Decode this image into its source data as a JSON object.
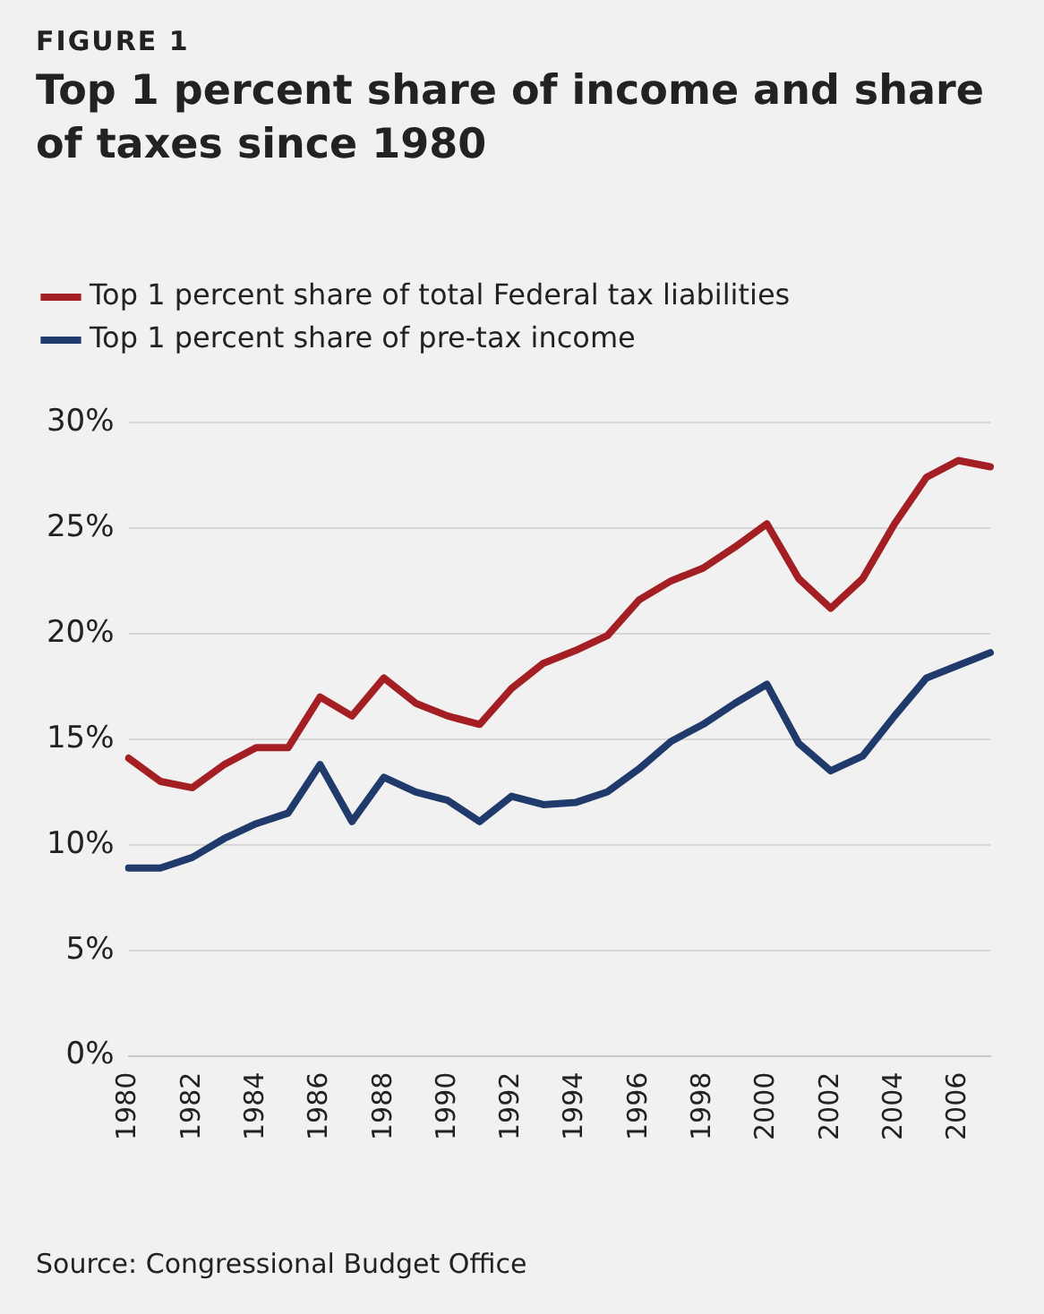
{
  "chart_data": {
    "type": "line",
    "subtitle": "FIGURE 1",
    "title": "Top 1 percent share of income and share of taxes since 1980",
    "categories": [
      "1980",
      null,
      "1982",
      null,
      "1984",
      null,
      "1986",
      null,
      "1988",
      null,
      "1990",
      null,
      "1992",
      null,
      "1994",
      null,
      "1996",
      null,
      "1998",
      null,
      "2000",
      null,
      "2002",
      null,
      "2004",
      null,
      "2006",
      null
    ],
    "series": [
      {
        "name": "Top 1 percent share of total Federal tax liabilities",
        "color": "#a31f24",
        "values": [
          14.1,
          13.0,
          12.7,
          13.8,
          14.6,
          14.6,
          17.0,
          16.1,
          17.9,
          16.7,
          16.1,
          15.7,
          17.4,
          18.6,
          19.2,
          19.9,
          21.6,
          22.5,
          23.1,
          24.1,
          25.2,
          22.6,
          21.2,
          22.6,
          25.2,
          27.4,
          28.2,
          27.9
        ]
      },
      {
        "name": "Top 1 percent share of pre-tax income",
        "color": "#1f3a6b",
        "values": [
          8.9,
          8.9,
          9.4,
          10.3,
          11.0,
          11.5,
          13.8,
          11.1,
          13.2,
          12.5,
          12.1,
          11.1,
          12.3,
          11.9,
          12.0,
          12.5,
          13.6,
          14.9,
          15.7,
          16.7,
          17.6,
          14.8,
          13.5,
          14.2,
          16.1,
          17.9,
          18.5,
          19.1
        ]
      }
    ],
    "ylim": [
      0,
      30
    ],
    "yticks": [
      {
        "value": 0,
        "label": "0%"
      },
      {
        "value": 5,
        "label": "5%"
      },
      {
        "value": 10,
        "label": "10%"
      },
      {
        "value": 15,
        "label": "15%"
      },
      {
        "value": 20,
        "label": "20%"
      },
      {
        "value": 25,
        "label": "25%"
      },
      {
        "value": 30,
        "label": "30%"
      }
    ],
    "grid": "y",
    "legend": "top left",
    "marker": "none",
    "line_style": "solid",
    "annotations": [
      "Source: Congressional Budget Office"
    ]
  }
}
